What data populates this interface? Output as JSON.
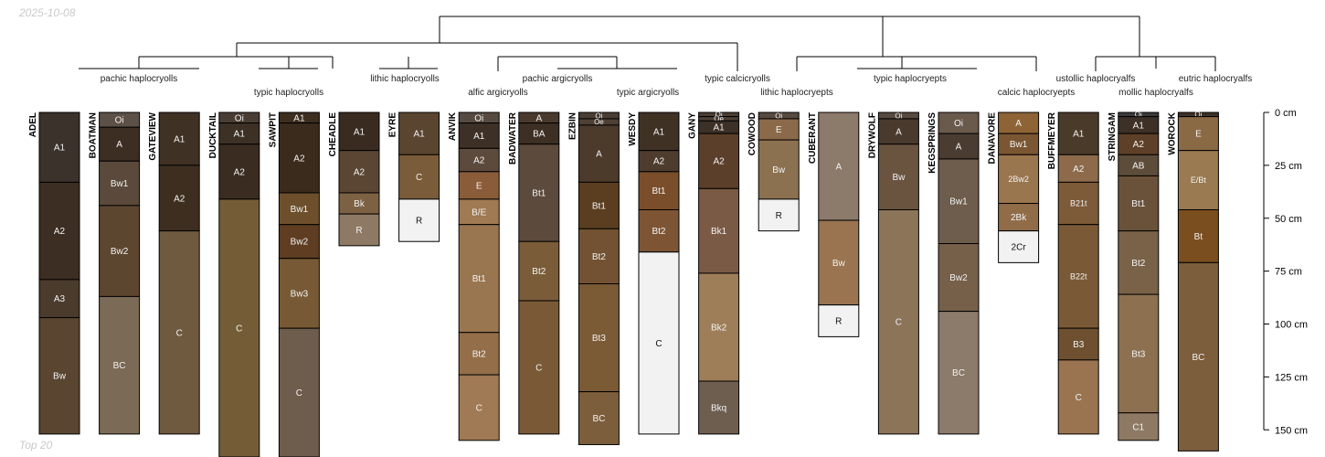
{
  "date": "2025-10-08",
  "footer": "Top 20",
  "chart_data": {
    "type": "soil-profile-sketch",
    "y_axis": {
      "unit": "cm",
      "ticks": [
        0,
        25,
        50,
        75,
        100,
        125,
        150
      ],
      "tick_labels": [
        "0 cm",
        "25 cm",
        "50 cm",
        "75 cm",
        "100 cm",
        "125 cm",
        "150 cm"
      ]
    },
    "taxa_labels": [
      {
        "text": "pachic haplocryolls"
      },
      {
        "text": "typic haplocryolls"
      },
      {
        "text": "lithic haplocryolls"
      },
      {
        "text": "pachic argicryolls"
      },
      {
        "text": "alfic argicryolls"
      },
      {
        "text": "typic argicryolls"
      },
      {
        "text": "typic calcicryolls"
      },
      {
        "text": "lithic haplocryepts"
      },
      {
        "text": "typic haplocryepts"
      },
      {
        "text": "calcic haplocryepts"
      },
      {
        "text": "ustollic haplocryalfs"
      },
      {
        "text": "mollic haplocryalfs"
      },
      {
        "text": "eutric haplocryalfs"
      }
    ],
    "profiles": [
      {
        "name": "ADEL",
        "horizons": [
          {
            "name": "A1",
            "top": 0,
            "bottom": 33,
            "color": "#3a322b"
          },
          {
            "name": "A2",
            "top": 33,
            "bottom": 79,
            "color": "#3c2e22"
          },
          {
            "name": "A3",
            "top": 79,
            "bottom": 97,
            "color": "#4a3b2d"
          },
          {
            "name": "Bw",
            "top": 97,
            "bottom": 152,
            "color": "#5a4630"
          }
        ]
      },
      {
        "name": "BOATMAN",
        "horizons": [
          {
            "name": "Oi",
            "top": 0,
            "bottom": 7,
            "color": "#5d5047"
          },
          {
            "name": "A",
            "top": 7,
            "bottom": 23,
            "color": "#3d2e23"
          },
          {
            "name": "Bw1",
            "top": 23,
            "bottom": 44,
            "color": "#5b4a3b"
          },
          {
            "name": "Bw2",
            "top": 44,
            "bottom": 87,
            "color": "#5d4630"
          },
          {
            "name": "BC",
            "top": 87,
            "bottom": 152,
            "color": "#7b6a56"
          }
        ]
      },
      {
        "name": "GATEVIEW",
        "horizons": [
          {
            "name": "A1",
            "top": 0,
            "bottom": 25,
            "color": "#3f3124"
          },
          {
            "name": "A2",
            "top": 25,
            "bottom": 56,
            "color": "#3d2e20"
          },
          {
            "name": "C",
            "top": 56,
            "bottom": 152,
            "color": "#6f5a40"
          }
        ]
      },
      {
        "name": "DUCKTAIL",
        "horizons": [
          {
            "name": "Oi",
            "top": 0,
            "bottom": 5,
            "color": "#4a3e34"
          },
          {
            "name": "A1",
            "top": 5,
            "bottom": 15,
            "color": "#3d3025"
          },
          {
            "name": "A2",
            "top": 15,
            "bottom": 41,
            "color": "#3a2c20"
          },
          {
            "name": "C",
            "top": 41,
            "bottom": 168,
            "color": "#745d36"
          }
        ]
      },
      {
        "name": "SAWPIT",
        "horizons": [
          {
            "name": "A1",
            "top": 0,
            "bottom": 5,
            "color": "#3d2e20"
          },
          {
            "name": "A2",
            "top": 5,
            "bottom": 38,
            "color": "#3b2b1d"
          },
          {
            "name": "Bw1",
            "top": 38,
            "bottom": 53,
            "color": "#6e4f2c"
          },
          {
            "name": "Bw2",
            "top": 53,
            "bottom": 69,
            "color": "#5e3d22"
          },
          {
            "name": "Bw3",
            "top": 69,
            "bottom": 102,
            "color": "#775a35"
          },
          {
            "name": "C",
            "top": 102,
            "bottom": 168,
            "color": "#6e5c4c"
          }
        ]
      },
      {
        "name": "CHEADLE",
        "horizons": [
          {
            "name": "A1",
            "top": 0,
            "bottom": 18,
            "color": "#3a2b20"
          },
          {
            "name": "A2",
            "top": 18,
            "bottom": 38,
            "color": "#5a4633"
          },
          {
            "name": "Bk",
            "top": 38,
            "bottom": 48,
            "color": "#7c6143"
          },
          {
            "name": "R",
            "top": 48,
            "bottom": 63,
            "color": "#8e7a64"
          }
        ]
      },
      {
        "name": "EYRE",
        "horizons": [
          {
            "name": "A1",
            "top": 0,
            "bottom": 20,
            "color": "#5a4530"
          },
          {
            "name": "C",
            "top": 20,
            "bottom": 41,
            "color": "#7a5c3a"
          },
          {
            "name": "R",
            "top": 41,
            "bottom": 61,
            "color": "#f2f2f2"
          }
        ]
      },
      {
        "name": "ANVIK",
        "horizons": [
          {
            "name": "Oi",
            "top": 0,
            "bottom": 5,
            "color": "#574a40"
          },
          {
            "name": "A1",
            "top": 5,
            "bottom": 17,
            "color": "#3d3026"
          },
          {
            "name": "A2",
            "top": 17,
            "bottom": 28,
            "color": "#5c4a3c"
          },
          {
            "name": "E",
            "top": 28,
            "bottom": 41,
            "color": "#8b5c3a"
          },
          {
            "name": "B/E",
            "top": 41,
            "bottom": 53,
            "color": "#a07a52"
          },
          {
            "name": "Bt1",
            "top": 53,
            "bottom": 104,
            "color": "#9a7650"
          },
          {
            "name": "Bt2",
            "top": 104,
            "bottom": 124,
            "color": "#936e48"
          },
          {
            "name": "C",
            "top": 124,
            "bottom": 155,
            "color": "#a07a54"
          }
        ]
      },
      {
        "name": "BADWATER",
        "horizons": [
          {
            "name": "A",
            "top": 0,
            "bottom": 5,
            "color": "#4a3a2d"
          },
          {
            "name": "BA",
            "top": 5,
            "bottom": 15,
            "color": "#3d2f23"
          },
          {
            "name": "Bt1",
            "top": 15,
            "bottom": 61,
            "color": "#5c4a3c"
          },
          {
            "name": "Bt2",
            "top": 61,
            "bottom": 89,
            "color": "#7b5c38"
          },
          {
            "name": "C",
            "top": 89,
            "bottom": 152,
            "color": "#7a5a36"
          }
        ]
      },
      {
        "name": "EZBIN",
        "horizons": [
          {
            "name": "Oi",
            "top": 0,
            "bottom": 3,
            "color": "#4a3e34"
          },
          {
            "name": "Oe",
            "top": 3,
            "bottom": 6,
            "color": "#4e4034"
          },
          {
            "name": "A",
            "top": 6,
            "bottom": 33,
            "color": "#4c3a2a"
          },
          {
            "name": "Bt1",
            "top": 33,
            "bottom": 55,
            "color": "#5b3e20"
          },
          {
            "name": "Bt2",
            "top": 55,
            "bottom": 81,
            "color": "#725232"
          },
          {
            "name": "Bt3",
            "top": 81,
            "bottom": 132,
            "color": "#7b5a36"
          },
          {
            "name": "BC",
            "top": 132,
            "bottom": 157,
            "color": "#7d5e3c"
          }
        ]
      },
      {
        "name": "WESDY",
        "horizons": [
          {
            "name": "A1",
            "top": 0,
            "bottom": 18,
            "color": "#3f3124"
          },
          {
            "name": "A2",
            "top": 18,
            "bottom": 28,
            "color": "#4e3c2e"
          },
          {
            "name": "Bt1",
            "top": 28,
            "bottom": 46,
            "color": "#7a4e2a"
          },
          {
            "name": "Bt2",
            "top": 46,
            "bottom": 66,
            "color": "#7d5535"
          },
          {
            "name": "C",
            "top": 66,
            "bottom": 152,
            "color": "#f2f2f2"
          }
        ]
      },
      {
        "name": "GANY",
        "horizons": [
          {
            "name": "Oi",
            "top": 0,
            "bottom": 2,
            "color": "#4a3e34"
          },
          {
            "name": "Oe",
            "top": 2,
            "bottom": 4,
            "color": "#4e4034"
          },
          {
            "name": "A1",
            "top": 4,
            "bottom": 10,
            "color": "#3d3026"
          },
          {
            "name": "A2",
            "top": 10,
            "bottom": 36,
            "color": "#5c3f2a"
          },
          {
            "name": "Bk1",
            "top": 36,
            "bottom": 76,
            "color": "#7a5a44"
          },
          {
            "name": "Bk2",
            "top": 76,
            "bottom": 127,
            "color": "#9e7e58"
          },
          {
            "name": "Bkq",
            "top": 127,
            "bottom": 152,
            "color": "#6e5e50"
          }
        ]
      },
      {
        "name": "COWOOD",
        "horizons": [
          {
            "name": "Oi",
            "top": 0,
            "bottom": 3,
            "color": "#574a40"
          },
          {
            "name": "E",
            "top": 3,
            "bottom": 13,
            "color": "#8b6a4a"
          },
          {
            "name": "Bw",
            "top": 13,
            "bottom": 41,
            "color": "#8c7150"
          },
          {
            "name": "R",
            "top": 41,
            "bottom": 56,
            "color": "#f2f2f2"
          }
        ]
      },
      {
        "name": "CUBERANT",
        "horizons": [
          {
            "name": "A",
            "top": 0,
            "bottom": 51,
            "color": "#8c7a6a"
          },
          {
            "name": "Bw",
            "top": 51,
            "bottom": 91,
            "color": "#9a7450"
          },
          {
            "name": "R",
            "top": 91,
            "bottom": 106,
            "color": "#f2f2f2"
          }
        ]
      },
      {
        "name": "DRYWOLF",
        "horizons": [
          {
            "name": "Oi",
            "top": 0,
            "bottom": 3,
            "color": "#574a40"
          },
          {
            "name": "A",
            "top": 3,
            "bottom": 15,
            "color": "#4a3a2d"
          },
          {
            "name": "Bw",
            "top": 15,
            "bottom": 46,
            "color": "#6a5440"
          },
          {
            "name": "C",
            "top": 46,
            "bottom": 152,
            "color": "#8c7458"
          }
        ]
      },
      {
        "name": "KEGSPRINGS",
        "horizons": [
          {
            "name": "Oi",
            "top": 0,
            "bottom": 10,
            "color": "#6a5a4c"
          },
          {
            "name": "A",
            "top": 10,
            "bottom": 22,
            "color": "#4a3c30"
          },
          {
            "name": "Bw1",
            "top": 22,
            "bottom": 62,
            "color": "#6e5c4c"
          },
          {
            "name": "Bw2",
            "top": 62,
            "bottom": 94,
            "color": "#76604a"
          },
          {
            "name": "BC",
            "top": 94,
            "bottom": 152,
            "color": "#8c7a6a"
          }
        ]
      },
      {
        "name": "DANAVORE",
        "horizons": [
          {
            "name": "A",
            "top": 0,
            "bottom": 10,
            "color": "#8e6436"
          },
          {
            "name": "Bw1",
            "top": 10,
            "bottom": 20,
            "color": "#7a5632"
          },
          {
            "name": "2Bw2",
            "top": 20,
            "bottom": 43,
            "color": "#9a764e"
          },
          {
            "name": "2Bk",
            "top": 43,
            "bottom": 56,
            "color": "#906c48"
          },
          {
            "name": "2Cr",
            "top": 56,
            "bottom": 71,
            "color": "#f2f2f2"
          }
        ]
      },
      {
        "name": "BUFFMEYER",
        "horizons": [
          {
            "name": "A1",
            "top": 0,
            "bottom": 20,
            "color": "#4a3a2a"
          },
          {
            "name": "A2",
            "top": 20,
            "bottom": 33,
            "color": "#8c6a4a"
          },
          {
            "name": "B21t",
            "top": 33,
            "bottom": 53,
            "color": "#7d5a38"
          },
          {
            "name": "B22t",
            "top": 53,
            "bottom": 102,
            "color": "#7a5a36"
          },
          {
            "name": "B3",
            "top": 102,
            "bottom": 117,
            "color": "#6e5030"
          },
          {
            "name": "C",
            "top": 117,
            "bottom": 152,
            "color": "#9a7450"
          }
        ]
      },
      {
        "name": "STRINGAM",
        "horizons": [
          {
            "name": "Oi",
            "top": 0,
            "bottom": 2,
            "color": "#3a3a3a"
          },
          {
            "name": "A1",
            "top": 2,
            "bottom": 10,
            "color": "#3d3026"
          },
          {
            "name": "A2",
            "top": 10,
            "bottom": 20,
            "color": "#5e4028"
          },
          {
            "name": "AB",
            "top": 20,
            "bottom": 30,
            "color": "#5e4c3a"
          },
          {
            "name": "Bt1",
            "top": 30,
            "bottom": 56,
            "color": "#6a523a"
          },
          {
            "name": "Bt2",
            "top": 56,
            "bottom": 86,
            "color": "#7a6248"
          },
          {
            "name": "Bt3",
            "top": 86,
            "bottom": 142,
            "color": "#8c7050"
          },
          {
            "name": "C1",
            "top": 142,
            "bottom": 155,
            "color": "#8e7a64"
          }
        ]
      },
      {
        "name": "WOROCK",
        "horizons": [
          {
            "name": "Oi",
            "top": 0,
            "bottom": 2,
            "color": "#3d3026"
          },
          {
            "name": "E",
            "top": 2,
            "bottom": 18,
            "color": "#8a6a45"
          },
          {
            "name": "E/Bt",
            "top": 18,
            "bottom": 46,
            "color": "#9a7a50"
          },
          {
            "name": "Bt",
            "top": 46,
            "bottom": 71,
            "color": "#7a4e1e"
          },
          {
            "name": "BC",
            "top": 71,
            "bottom": 160,
            "color": "#7d5e3c"
          }
        ]
      }
    ]
  }
}
